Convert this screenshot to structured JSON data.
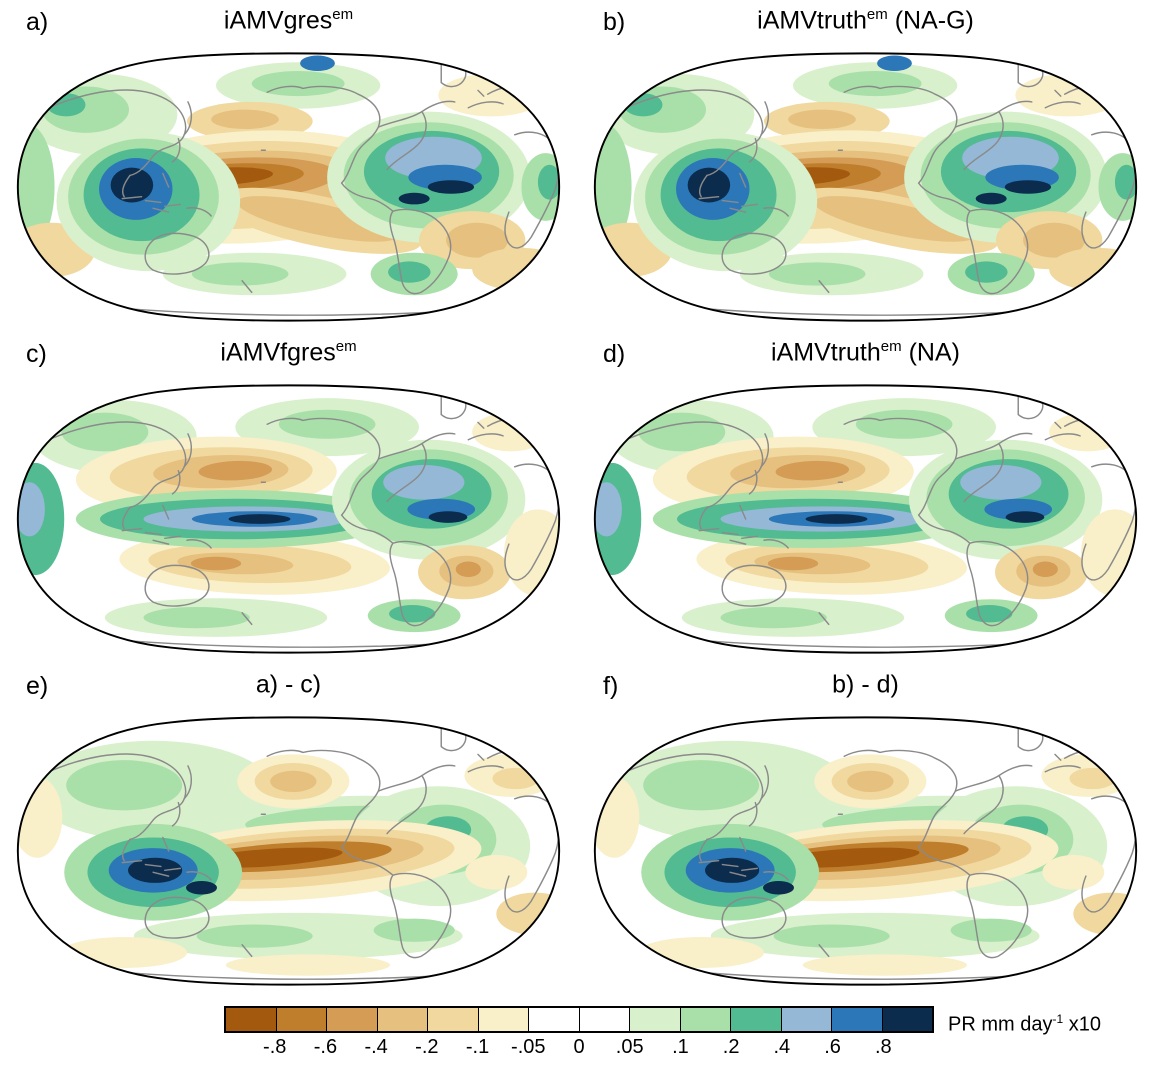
{
  "figure": {
    "panels": [
      {
        "label": "a)",
        "title": "iAMVgres",
        "title_sup": "em",
        "title_suffix": ""
      },
      {
        "label": "b)",
        "title": "iAMVtruth",
        "title_sup": "em",
        "title_suffix": " (NA-G)"
      },
      {
        "label": "c)",
        "title": "iAMVfgres",
        "title_sup": "em",
        "title_suffix": ""
      },
      {
        "label": "d)",
        "title": "iAMVtruth",
        "title_sup": "em",
        "title_suffix": " (NA)"
      },
      {
        "label": "e)",
        "title": "a) - c)",
        "title_sup": "",
        "title_suffix": ""
      },
      {
        "label": "f)",
        "title": "b) - d)",
        "title_sup": "",
        "title_suffix": ""
      }
    ],
    "colorbar": {
      "ticks": [
        "-.8",
        "-.6",
        "-.4",
        "-.2",
        "-.1",
        "-.05",
        "0",
        ".05",
        ".1",
        ".2",
        ".4",
        ".6",
        ".8"
      ],
      "colors": [
        "#a3590e",
        "#bf7e2c",
        "#d49c55",
        "#e6c07f",
        "#f0d89e",
        "#f9efc9",
        "#ffffff",
        "#ffffff",
        "#d9f0cc",
        "#a9e0a9",
        "#52bb92",
        "#94b8d6",
        "#2b77b8",
        "#0c2c4e"
      ],
      "label": "PR mm day",
      "label_sup": "-1",
      "label_suffix": " x10"
    }
  },
  "chart_data": {
    "type": "heatmap",
    "title": "Global precipitation anomaly maps (Robinson projection, Pacific-centered), 6 panels",
    "panels": [
      "iAMVgres^em",
      "iAMVtruth^em (NA-G)",
      "iAMVfgres^em",
      "iAMVtruth^em (NA)",
      "a) - c)",
      "b) - d)"
    ],
    "colorbar_levels": [
      -0.8,
      -0.6,
      -0.4,
      -0.2,
      -0.1,
      -0.05,
      0,
      0.05,
      0.1,
      0.2,
      0.4,
      0.6,
      0.8
    ],
    "units": "PR mm day-1 x10",
    "legend_position": "bottom"
  }
}
